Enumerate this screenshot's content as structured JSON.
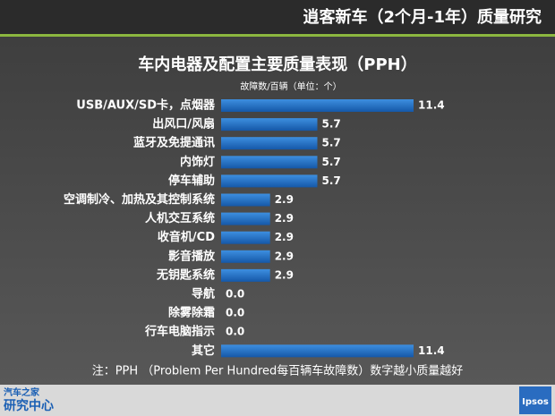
{
  "header": {
    "title": "逍客新车（2个月-1年）质量研究"
  },
  "chart_data": {
    "type": "bar",
    "orientation": "horizontal",
    "title": "车内电器及配置主要质量表现（PPH）",
    "subtitle": "故障数/百辆（单位：个）",
    "categories": [
      "USB/AUX/SD卡，点烟器",
      "出风口/风扇",
      "蓝牙及免提通讯",
      "内饰灯",
      "停车辅助",
      "空调制冷、加热及其控制系统",
      "人机交互系统",
      "收音机/CD",
      "影音播放",
      "无钥匙系统",
      "导航",
      "除雾除霜",
      "行车电脑指示",
      "其它"
    ],
    "values": [
      11.4,
      5.7,
      5.7,
      5.7,
      5.7,
      2.9,
      2.9,
      2.9,
      2.9,
      2.9,
      0,
      0,
      0,
      11.4
    ],
    "value_labels": [
      "11.4",
      "5.7",
      "5.7",
      "5.7",
      "5.7",
      "2.9",
      "2.9",
      "2.9",
      "2.9",
      "2.9",
      "0.0",
      "0.0",
      "0.0",
      "11.4"
    ],
    "color": "#1f73c9",
    "note": "注：PPH （Problem Per Hundred每百辆车故障数）数字越小质量越好"
  },
  "footer": {
    "left_logo_top": "汽车之家",
    "left_logo_bottom": "研究中心",
    "right_logo": "Ipsos"
  }
}
